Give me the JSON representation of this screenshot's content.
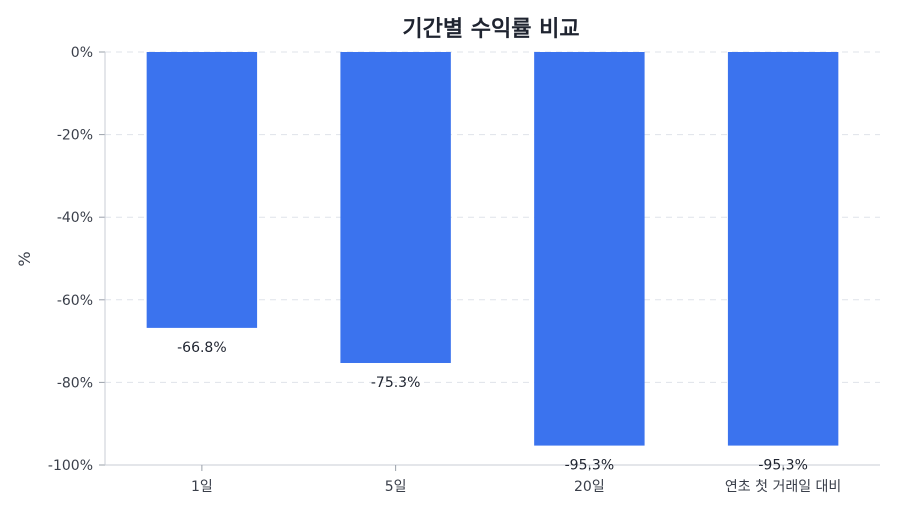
{
  "chart_data": {
    "type": "bar",
    "title": "기간별 수익률 비교",
    "xlabel": "",
    "ylabel": "%",
    "categories": [
      "1일",
      "5일",
      "20일",
      "연초 첫 거래일 대비"
    ],
    "values": [
      -66.8,
      -75.3,
      -95.3,
      -95.3
    ],
    "data_labels": [
      "-66.8%",
      "-75.3%",
      "-95.3%",
      "-95.3%"
    ],
    "ylim": [
      -100,
      0
    ],
    "yticks": [
      0,
      -20,
      -40,
      -60,
      -80,
      -100
    ],
    "ytick_labels": [
      "0%",
      "-20%",
      "-40%",
      "-60%",
      "-80%",
      "-100%"
    ],
    "grid": true,
    "bar_color": "#3b73ee"
  }
}
